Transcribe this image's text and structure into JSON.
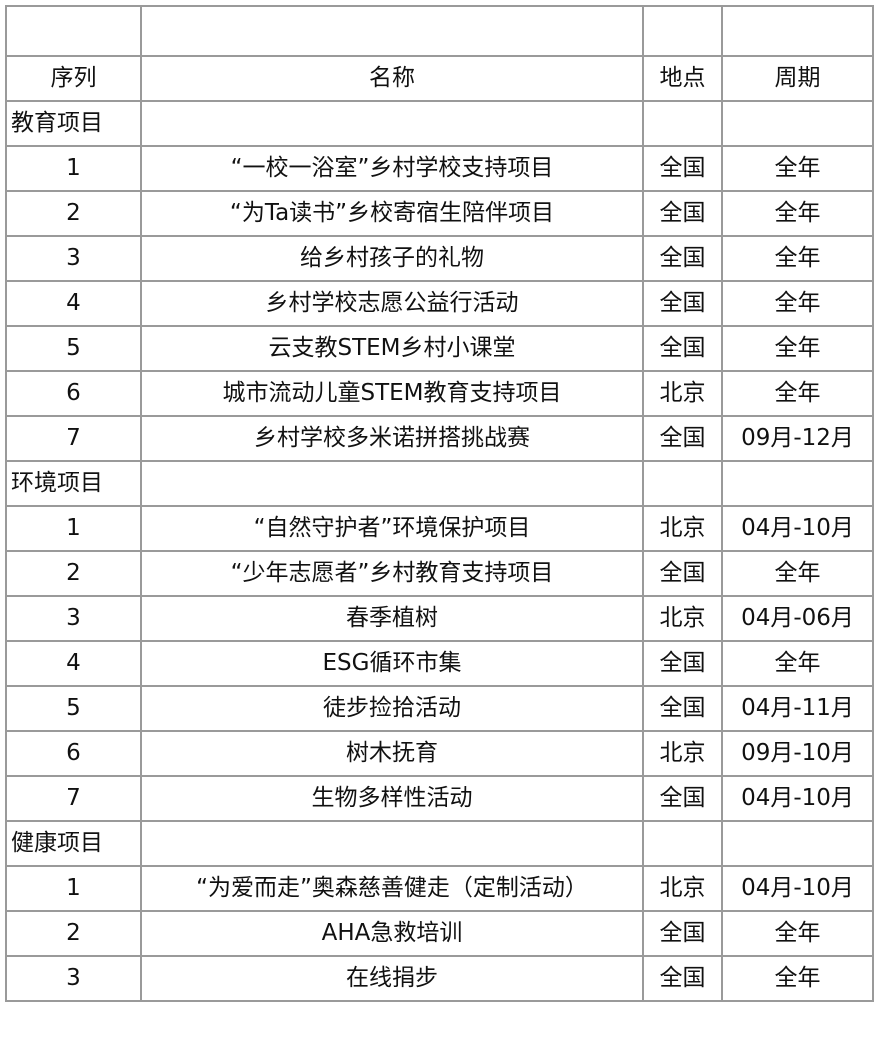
{
  "header": {
    "index": "序列",
    "name": "名称",
    "location": "地点",
    "period": "周期"
  },
  "sections": [
    {
      "title": "教育项目",
      "rows": [
        {
          "index": "1",
          "name": "“一校一浴室”乡村学校支持项目",
          "location": "全国",
          "period": "全年"
        },
        {
          "index": "2",
          "name": "“为Ta读书”乡校寄宿生陪伴项目",
          "location": "全国",
          "period": "全年"
        },
        {
          "index": "3",
          "name": "给乡村孩子的礼物",
          "location": "全国",
          "period": "全年"
        },
        {
          "index": "4",
          "name": "乡村学校志愿公益行活动",
          "location": "全国",
          "period": "全年"
        },
        {
          "index": "5",
          "name": "云支教STEM乡村小课堂",
          "location": "全国",
          "period": "全年"
        },
        {
          "index": "6",
          "name": "城市流动儿童STEM教育支持项目",
          "location": "北京",
          "period": "全年"
        },
        {
          "index": "7",
          "name": "乡村学校多米诺拼搭挑战赛",
          "location": "全国",
          "period": "09月-12月"
        }
      ]
    },
    {
      "title": "环境项目",
      "rows": [
        {
          "index": "1",
          "name": "“自然守护者”环境保护项目",
          "location": "北京",
          "period": "04月-10月"
        },
        {
          "index": "2",
          "name": "“少年志愿者”乡村教育支持项目",
          "location": "全国",
          "period": "全年"
        },
        {
          "index": "3",
          "name": "春季植树",
          "location": "北京",
          "period": "04月-06月"
        },
        {
          "index": "4",
          "name": "ESG循环市集",
          "location": "全国",
          "period": "全年"
        },
        {
          "index": "5",
          "name": "徒步捡拾活动",
          "location": "全国",
          "period": "04月-11月"
        },
        {
          "index": "6",
          "name": "树木抚育",
          "location": "北京",
          "period": "09月-10月"
        },
        {
          "index": "7",
          "name": "生物多样性活动",
          "location": "全国",
          "period": "04月-10月"
        }
      ]
    },
    {
      "title": "健康项目",
      "rows": [
        {
          "index": "1",
          "name": "“为爱而走”奥森慈善健走（定制活动）",
          "location": "北京",
          "period": "04月-10月"
        },
        {
          "index": "2",
          "name": "AHA急救培训",
          "location": "全国",
          "period": "全年"
        },
        {
          "index": "3",
          "name": "在线捐步",
          "location": "全国",
          "period": "全年"
        }
      ]
    }
  ]
}
